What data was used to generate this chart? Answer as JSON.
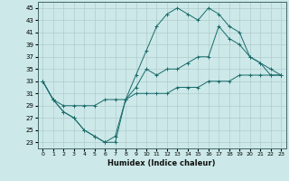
{
  "xlabel": "Humidex (Indice chaleur)",
  "xlim": [
    -0.5,
    23.5
  ],
  "ylim": [
    22,
    46
  ],
  "yticks": [
    23,
    25,
    27,
    29,
    31,
    33,
    35,
    37,
    39,
    41,
    43,
    45
  ],
  "xticks": [
    0,
    1,
    2,
    3,
    4,
    5,
    6,
    7,
    8,
    9,
    10,
    11,
    12,
    13,
    14,
    15,
    16,
    17,
    18,
    19,
    20,
    21,
    22,
    23
  ],
  "bg_color": "#cce8e8",
  "grid_color": "#b0cccc",
  "line_color": "#1a6b6b",
  "line1_x": [
    0,
    1,
    2,
    3,
    4,
    5,
    6,
    7,
    8,
    9,
    10,
    11,
    12,
    13,
    14,
    15,
    16,
    17,
    18,
    19,
    20,
    21,
    22,
    23
  ],
  "line1_y": [
    33,
    30,
    28,
    27,
    25,
    24,
    23,
    23,
    30,
    34,
    38,
    42,
    44,
    45,
    44,
    43,
    45,
    44,
    42,
    41,
    37,
    36,
    34,
    34
  ],
  "line2_x": [
    0,
    1,
    2,
    3,
    4,
    5,
    6,
    7,
    8,
    9,
    10,
    11,
    12,
    13,
    14,
    15,
    16,
    17,
    18,
    19,
    20,
    21,
    22,
    23
  ],
  "line2_y": [
    33,
    30,
    28,
    27,
    25,
    24,
    23,
    24,
    30,
    32,
    35,
    34,
    35,
    35,
    36,
    37,
    37,
    42,
    40,
    39,
    37,
    36,
    35,
    34
  ],
  "line3_x": [
    0,
    1,
    2,
    3,
    4,
    5,
    6,
    7,
    8,
    9,
    10,
    11,
    12,
    13,
    14,
    15,
    16,
    17,
    18,
    19,
    20,
    21,
    22,
    23
  ],
  "line3_y": [
    33,
    30,
    29,
    29,
    29,
    29,
    30,
    30,
    30,
    31,
    31,
    31,
    31,
    32,
    32,
    32,
    33,
    33,
    33,
    34,
    34,
    34,
    34,
    34
  ]
}
